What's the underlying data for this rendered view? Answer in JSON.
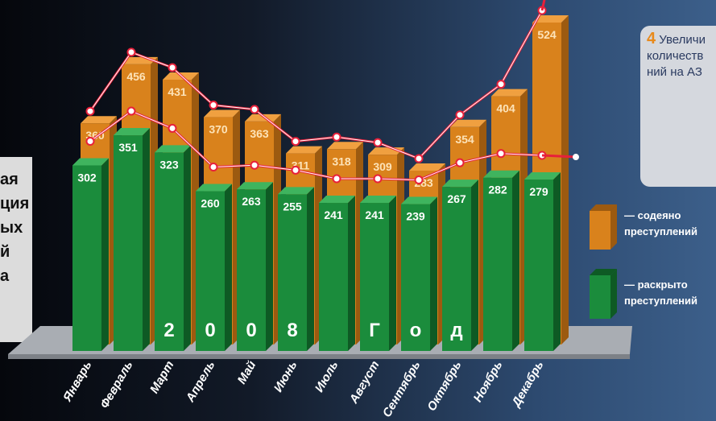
{
  "chart_data": {
    "type": "bar",
    "categories": [
      "Январь",
      "Февраль",
      "Март",
      "Апрель",
      "Май",
      "Июнь",
      "Июль",
      "Август",
      "Сентябрь",
      "Октябрь",
      "Ноябрь",
      "Декабрь"
    ],
    "series": [
      {
        "name": "— содеяно преступлений",
        "color": "#d9821c",
        "values": [
          360,
          456,
          431,
          370,
          363,
          311,
          318,
          309,
          283,
          354,
          404,
          524
        ]
      },
      {
        "name": "— раскрыто преступлений",
        "color": "#1b8c3c",
        "values": [
          302,
          351,
          323,
          260,
          263,
          255,
          241,
          241,
          239,
          267,
          282,
          279
        ]
      }
    ],
    "caption": [
      "2",
      "0",
      "0",
      "8",
      "Г",
      "о",
      "д"
    ],
    "side_note": {
      "number": "4",
      "lines": [
        "Увеличи",
        "количеств",
        "ний на АЗ"
      ]
    },
    "left_text": [
      "ая",
      "ция",
      "ых",
      "й",
      "а"
    ]
  }
}
